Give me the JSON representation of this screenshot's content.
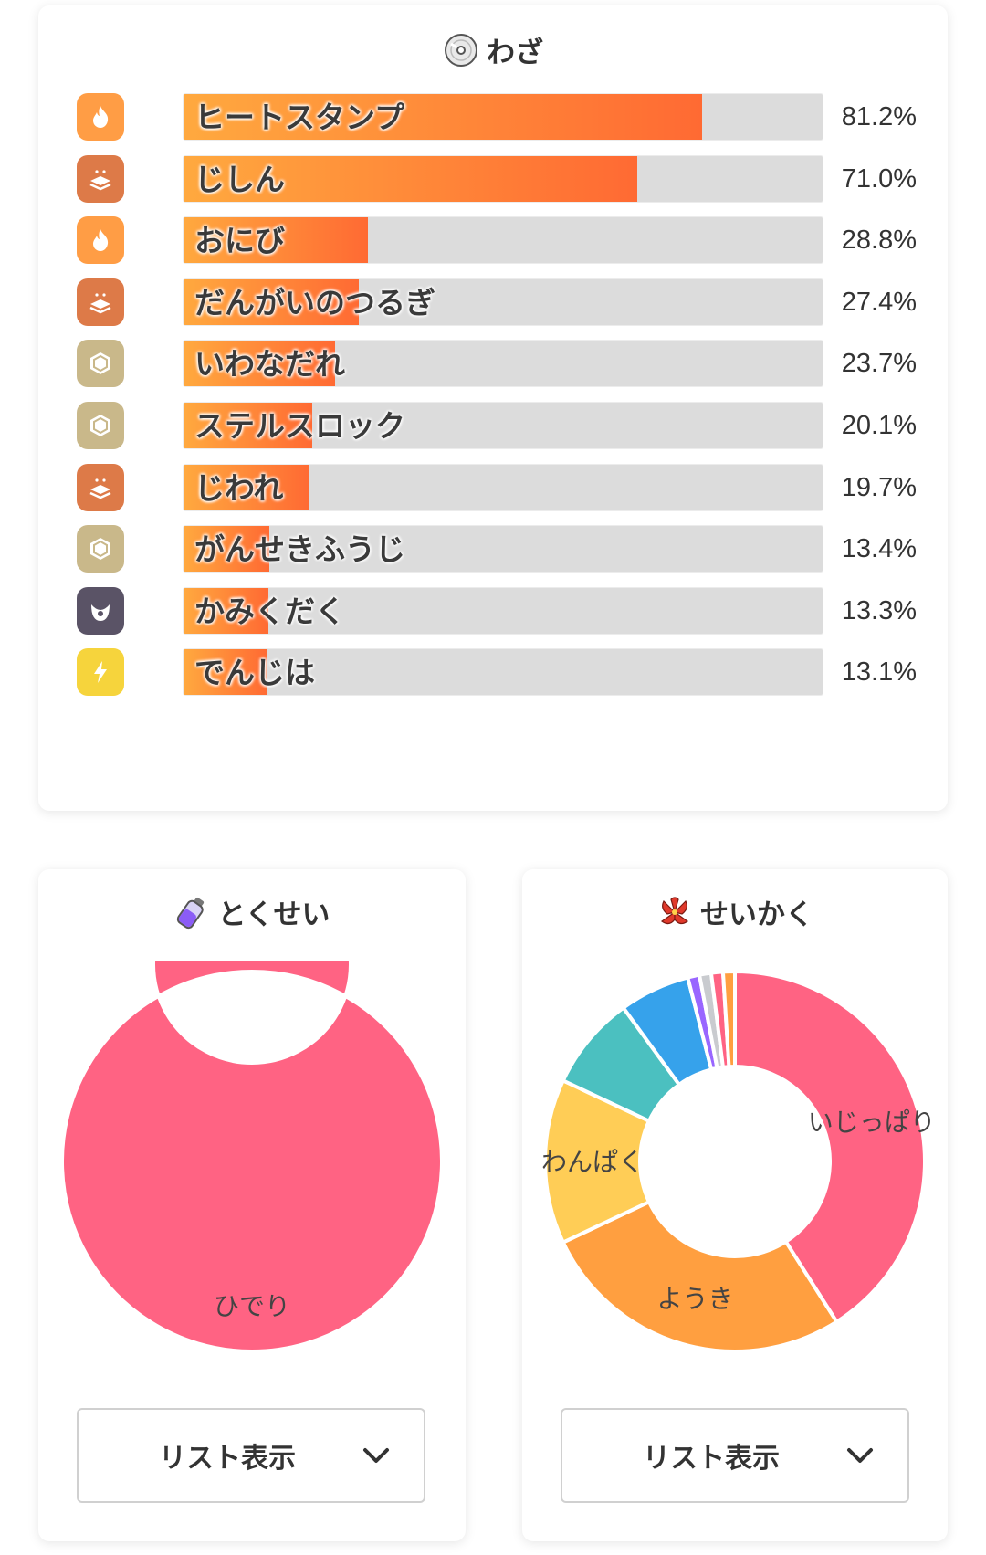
{
  "moves": {
    "title": "わざ",
    "icon": "disc-icon",
    "items": [
      {
        "name": "ヒートスタンプ",
        "percent": "81.2%",
        "value": 81.2,
        "type": "fire"
      },
      {
        "name": "じしん",
        "percent": "71.0%",
        "value": 71.0,
        "type": "ground"
      },
      {
        "name": "おにび",
        "percent": "28.8%",
        "value": 28.8,
        "type": "fire"
      },
      {
        "name": "だんがいのつるぎ",
        "percent": "27.4%",
        "value": 27.4,
        "type": "ground"
      },
      {
        "name": "いわなだれ",
        "percent": "23.7%",
        "value": 23.7,
        "type": "rock"
      },
      {
        "name": "ステルスロック",
        "percent": "20.1%",
        "value": 20.1,
        "type": "rock"
      },
      {
        "name": "じわれ",
        "percent": "19.7%",
        "value": 19.7,
        "type": "ground"
      },
      {
        "name": "がんせきふうじ",
        "percent": "13.4%",
        "value": 13.4,
        "type": "rock"
      },
      {
        "name": "かみくだく",
        "percent": "13.3%",
        "value": 13.3,
        "type": "dark"
      },
      {
        "name": "でんじは",
        "percent": "13.1%",
        "value": 13.1,
        "type": "electric"
      }
    ]
  },
  "type_colors": {
    "fire": "#ff9d45",
    "ground": "#dd7a48",
    "rock": "#c9b88a",
    "dark": "#5a5366",
    "electric": "#f6d43c"
  },
  "ability": {
    "title": "とくせい",
    "icon": "potion-icon",
    "button_label": "リスト表示",
    "chart_data": {
      "type": "pie",
      "categories": [
        "ひでり"
      ],
      "values": [
        100
      ],
      "colors": [
        "#ff6383"
      ]
    }
  },
  "nature": {
    "title": "せいかく",
    "icon": "flower-icon",
    "button_label": "リスト表示",
    "chart_data": {
      "type": "pie",
      "categories": [
        "いじっぱり",
        "ようき",
        "わんぱく",
        "",
        "",
        "",
        "",
        "",
        ""
      ],
      "values": [
        41,
        27,
        14,
        8,
        6,
        1,
        1,
        1,
        1
      ],
      "colors": [
        "#ff6383",
        "#ff9f40",
        "#ffcd56",
        "#4bc0c0",
        "#36a2eb",
        "#9966ff",
        "#c9cbcf",
        "#ff6383",
        "#ff9f40"
      ]
    }
  }
}
